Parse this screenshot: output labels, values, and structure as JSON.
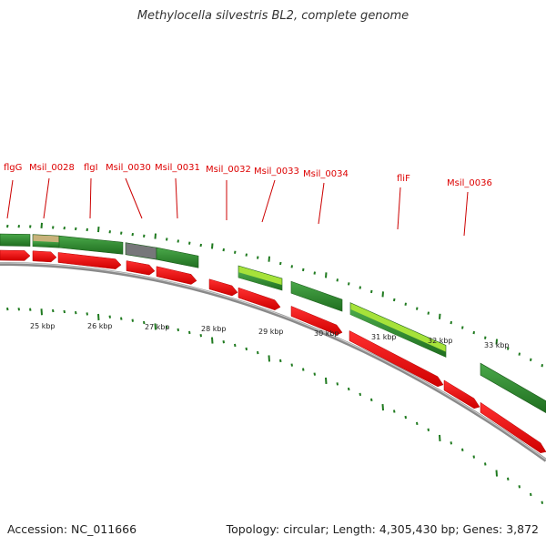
{
  "title": "Methylocella silvestris BL2, complete genome",
  "footer": {
    "accession": "Accession: NC_011666",
    "summary": "Topology: circular; Length: 4,305,430 bp; Genes: 3,872"
  },
  "colors": {
    "label": "#dd0000",
    "leader": "#cc0000",
    "tick": "#1f7a1f",
    "cds": "#ee0000",
    "track_green": "#2e8b2e",
    "track_tan": "#c8b27a",
    "track_gray": "#77777a",
    "track_lime": "#a6e23a",
    "backbone": "#8a8a8a"
  },
  "gene_labels": [
    "flgG",
    "Msil_0028",
    "flgI",
    "Msil_0030",
    "Msil_0031",
    "Msil_0032",
    "Msil_0033",
    "Msil_0034",
    "fliF",
    "Msil_0036"
  ],
  "kbp_labels": [
    "25 kbp",
    "26 kbp",
    "27 kbp",
    "28 kbp",
    "29 kbp",
    "30 kbp",
    "31 kbp",
    "32 kbp",
    "33 kbp"
  ],
  "track_kinds": [
    "green",
    "tan",
    "green",
    "gray",
    "green",
    "lime",
    "green",
    "lime",
    "green"
  ],
  "cds_count": 11
}
